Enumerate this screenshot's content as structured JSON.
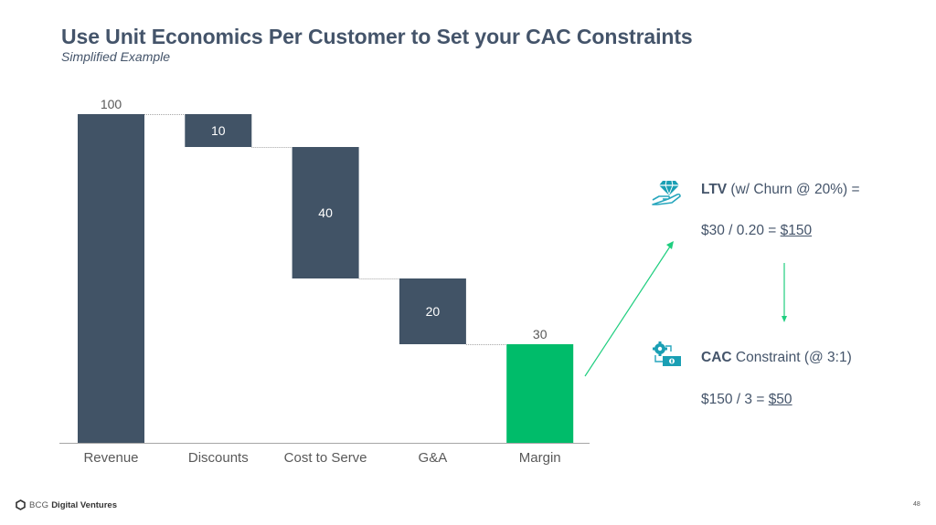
{
  "slide": {
    "title": "Use Unit Economics Per Customer to Set your CAC Constraints",
    "subtitle": "Simplified Example",
    "page_number": "48"
  },
  "footer": {
    "logo_icon": "hexagon-outline-icon",
    "brand_light": "BCG",
    "brand_bold": "Digital Ventures"
  },
  "colors": {
    "bar": "#415366",
    "margin_bar": "#00bc6a",
    "arrow": "#1fce7f",
    "text": "#44546a",
    "icon_teal": "#27a6bd"
  },
  "chart_data": {
    "type": "waterfall",
    "title": "",
    "xlabel": "",
    "ylabel": "",
    "ylim": [
      0,
      100
    ],
    "grid": false,
    "categories": [
      "Revenue",
      "Discounts",
      "Cost to Serve",
      "G&A",
      "Margin"
    ],
    "values": [
      100,
      -10,
      -40,
      -20,
      30
    ],
    "value_labels": [
      "100",
      "10",
      "40",
      "20",
      "30"
    ],
    "bar_kinds": [
      "total",
      "decrease",
      "decrease",
      "decrease",
      "total"
    ]
  },
  "ltv": {
    "icon": "hand-holding-diamond-icon",
    "label_bold": "LTV",
    "label_rest": " (w/ Churn @ 20%) =",
    "formula": "$30 / 0.20 = ",
    "result": "$150"
  },
  "cac": {
    "icon": "gear-to-money-icon",
    "label_bold": "CAC",
    "label_rest": " Constraint (@ 3:1)",
    "formula": "$150 / 3 = ",
    "result": "$50"
  }
}
